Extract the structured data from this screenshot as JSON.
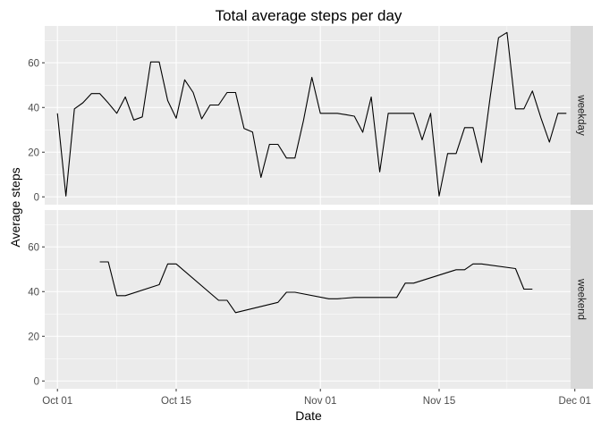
{
  "chart_data": {
    "type": "line",
    "title": "Total average steps per day",
    "xlabel": "Date",
    "ylabel": "Average steps",
    "xlim": [
      -1.5,
      60.5
    ],
    "ylim": [
      -3.5,
      76.5
    ],
    "x_ticks": [
      {
        "label": "Oct 01",
        "x": 0
      },
      {
        "label": "Oct 15",
        "x": 14
      },
      {
        "label": "Nov 01",
        "x": 31
      },
      {
        "label": "Nov 15",
        "x": 45
      },
      {
        "label": "Dec 01",
        "x": 61
      }
    ],
    "y_ticks": [
      0,
      20,
      40,
      60
    ],
    "colors": {
      "panel_bg": "#ebebeb",
      "grid": "#ffffff",
      "strip_bg": "#d9d9d9",
      "line": "#000000"
    },
    "panels": [
      {
        "name": "weekday",
        "x": [
          0,
          1,
          2,
          3,
          4,
          5,
          6,
          7,
          8,
          9,
          10,
          11,
          12,
          13,
          14,
          15,
          16,
          17,
          18,
          19,
          20,
          21,
          22,
          23,
          24,
          25,
          26,
          27,
          28,
          29,
          30,
          31,
          32,
          33,
          34,
          35,
          36,
          37,
          38,
          39,
          40,
          41,
          42,
          43,
          44,
          45,
          46,
          47,
          48,
          49,
          50,
          51,
          52,
          53,
          54,
          55,
          56,
          57,
          58,
          59,
          60
        ],
        "y": [
          37.4,
          0.4,
          39.4,
          42.1,
          46.2,
          46.2,
          42,
          37.4,
          44.7,
          34.4,
          35.8,
          60.4,
          60.4,
          43.1,
          35.2,
          52.4,
          46.7,
          34.9,
          41.1,
          41.1,
          46.7,
          46.7,
          30.6,
          29,
          8.7,
          23.5,
          23.5,
          17.4,
          17.4,
          34.1,
          53.5,
          37.4,
          37.4,
          37.4,
          36.8,
          36.1,
          28.9,
          44.7,
          11.2,
          37.4,
          37.4,
          37.4,
          37.4,
          25.5,
          37.4,
          0.4,
          19.4,
          19.4,
          31,
          31,
          15.4,
          44.1,
          71.2,
          73.6,
          39.4,
          39.4,
          47.4,
          35.4,
          24.5,
          37.4,
          37.4
        ]
      },
      {
        "name": "weekend",
        "x": [
          5,
          6,
          7,
          8,
          12,
          13,
          14,
          19,
          20,
          21,
          26,
          27,
          28,
          32,
          33,
          35,
          39,
          40,
          41,
          42,
          47,
          48,
          49,
          50,
          54,
          55,
          56
        ],
        "y": [
          53.3,
          53.3,
          38.2,
          38.2,
          43.1,
          52.4,
          52.4,
          36.1,
          36.1,
          30.6,
          35.2,
          39.7,
          39.7,
          36.8,
          36.8,
          37.4,
          37.4,
          37.4,
          43.8,
          43.8,
          49.8,
          49.8,
          52.4,
          52.4,
          50.3,
          41.1,
          41.1
        ]
      }
    ]
  }
}
